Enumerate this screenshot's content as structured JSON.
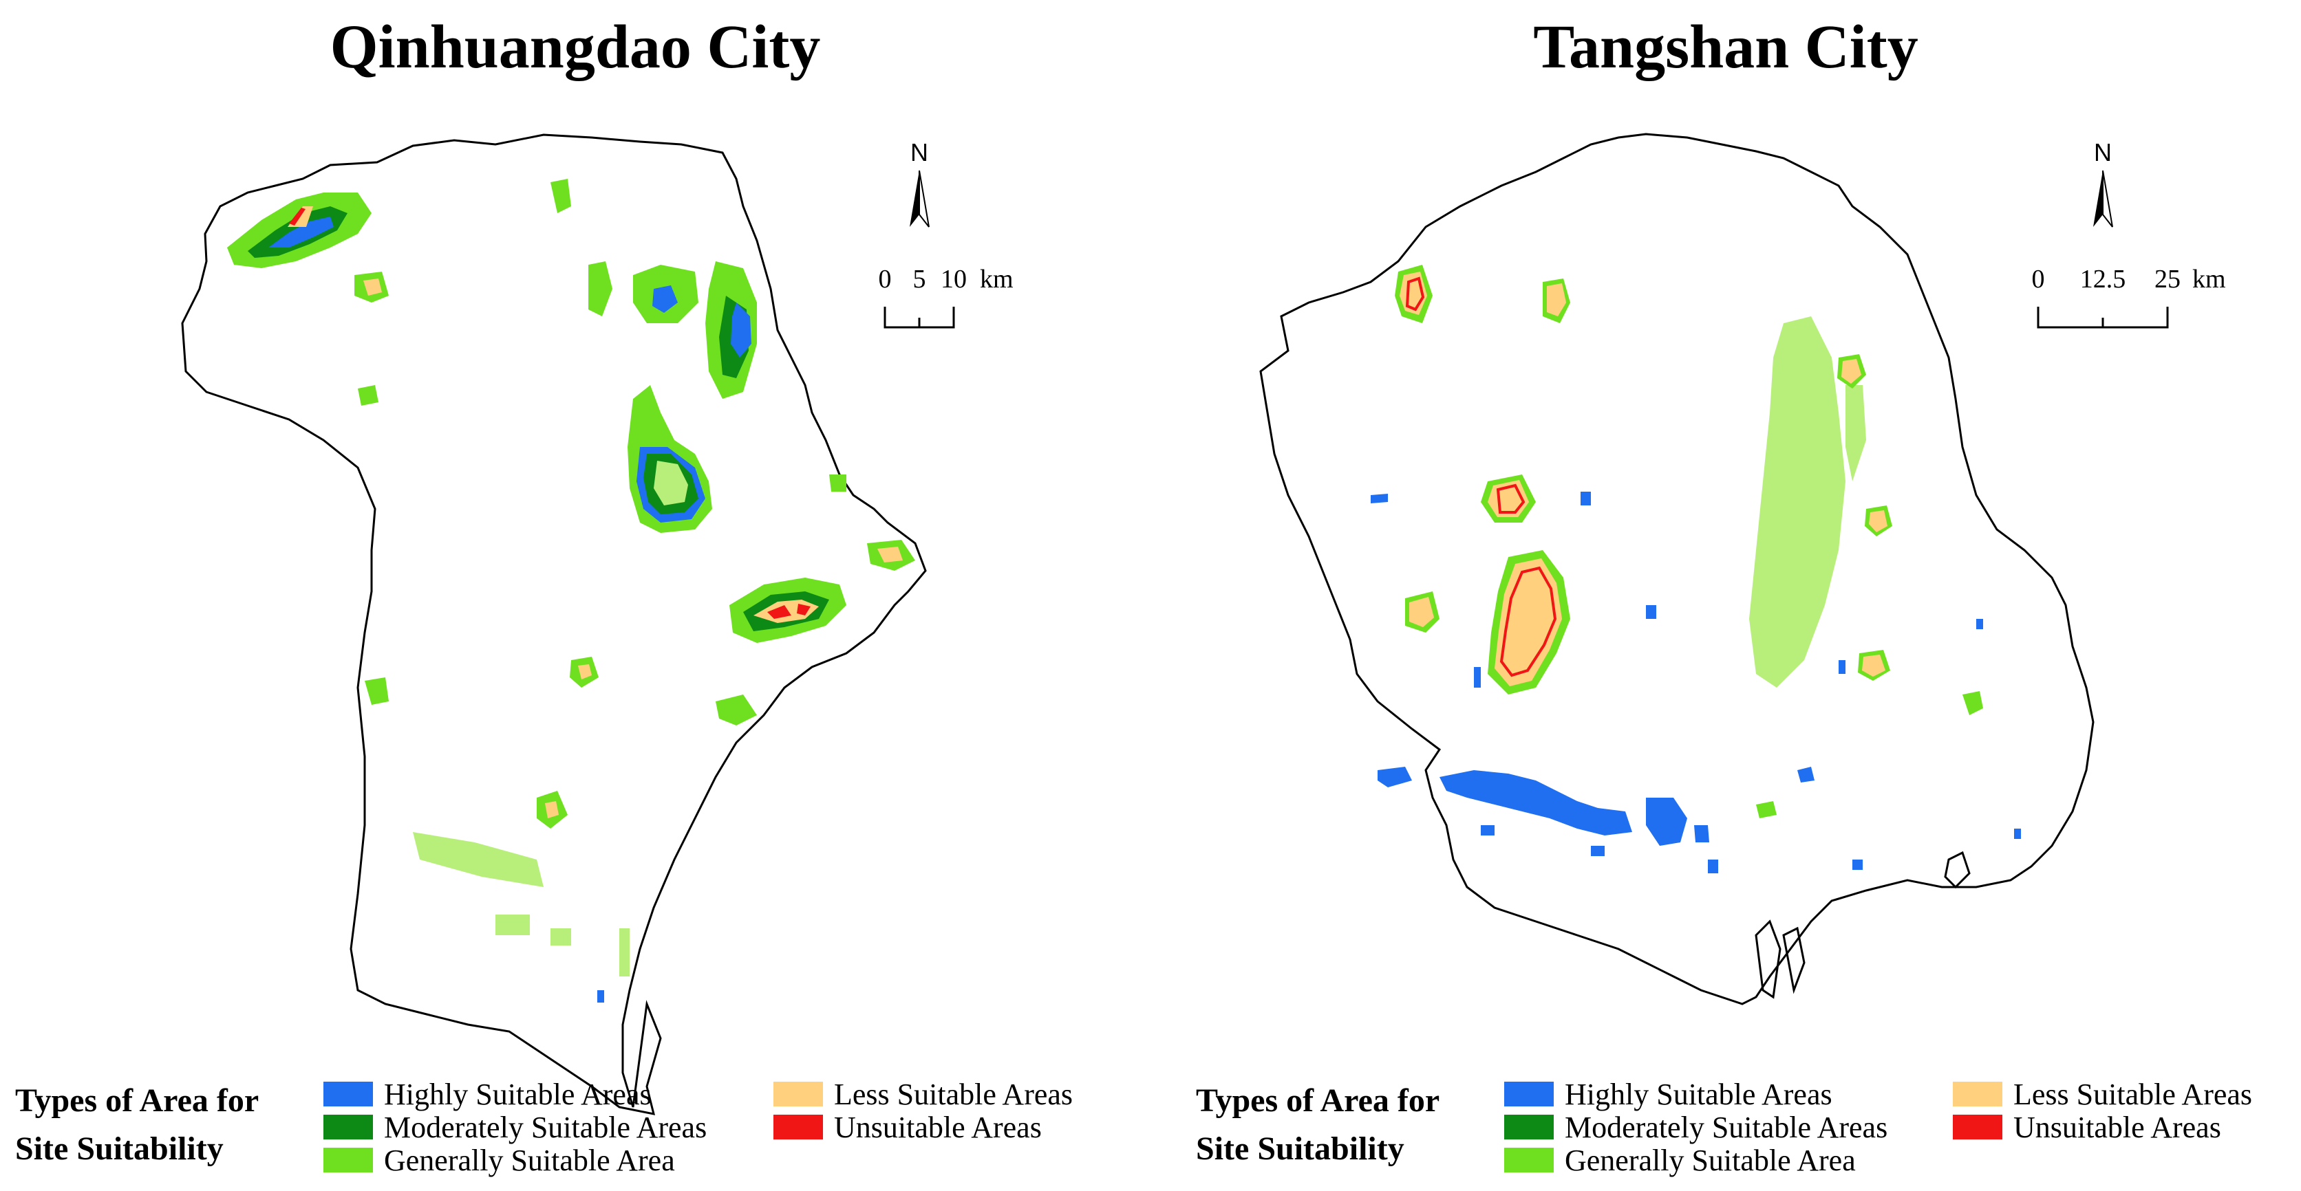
{
  "colors": {
    "highly": "#1f6ff0",
    "moderately": "#0c8a15",
    "generally": "#6fe01f",
    "generally_light": "#b8ef7a",
    "less": "#ffd17f",
    "unsuitable": "#f01616",
    "boundary": "#000000"
  },
  "panels": [
    {
      "title": "Qinhuangdao City",
      "north_label": "N",
      "scale": {
        "ticks": [
          "0",
          "5",
          "10"
        ],
        "unit": "km"
      }
    },
    {
      "title": "Tangshan City",
      "north_label": "N",
      "scale": {
        "ticks": [
          "0",
          "12.5",
          "25"
        ],
        "unit": "km"
      }
    }
  ],
  "legend": {
    "title_line1": "Types of Area for",
    "title_line2": "Site Suitability",
    "items": [
      {
        "label": "Highly Suitable Areas",
        "color": "#1f6ff0"
      },
      {
        "label": "Moderately Suitable Areas",
        "color": "#0c8a15"
      },
      {
        "label": "Generally Suitable Area",
        "color": "#6fe01f"
      },
      {
        "label": "Less Suitable Areas",
        "color": "#ffd17f"
      },
      {
        "label": "Unsuitable Areas",
        "color": "#f01616"
      }
    ]
  }
}
